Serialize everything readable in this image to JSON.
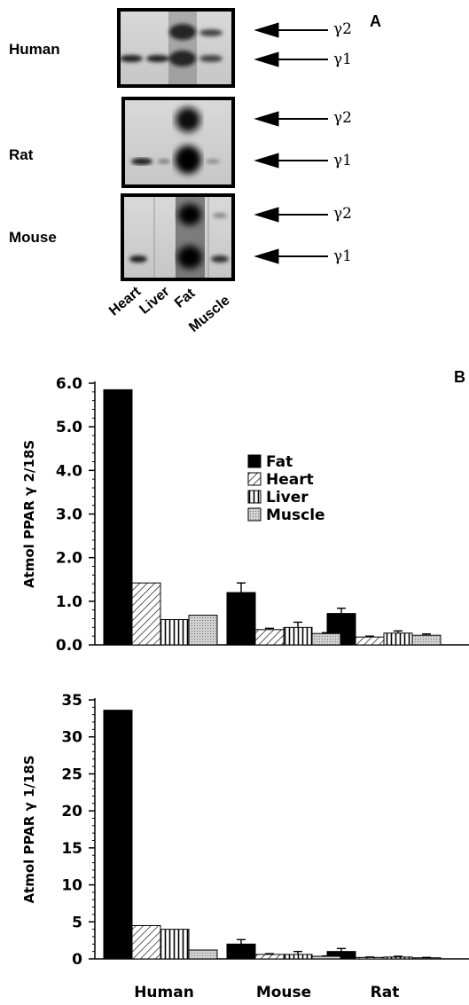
{
  "panel_a": {
    "letter": "A",
    "species": [
      "Human",
      "Rat",
      "Mouse"
    ],
    "lanes": [
      "Heart",
      "Liver",
      "Fat",
      "Muscle"
    ],
    "isoforms": [
      "γ2",
      "γ1"
    ]
  },
  "panel_b": {
    "letter": "B"
  },
  "colors": {
    "fat": "#000000",
    "heart": "hatch-diagonal",
    "liver": "hatch-vertical",
    "muscle": "dotted-gray"
  },
  "chart_data": [
    {
      "type": "bar",
      "categories": [
        "Human",
        "Mouse",
        "Rat"
      ],
      "ylabel": "Atmol PPAR γ 2/18S",
      "ylim": [
        0,
        6.0
      ],
      "yticks": [
        "0.0",
        "1.0",
        "2.0",
        "3.0",
        "4.0",
        "5.0",
        "6.0"
      ],
      "legend": [
        "Fat",
        "Heart",
        "Liver",
        "Muscle"
      ],
      "legend_position": "upper-middle",
      "series": [
        {
          "name": "Fat",
          "values": [
            5.85,
            1.2,
            0.72
          ],
          "errors": [
            0,
            0.22,
            0.12
          ]
        },
        {
          "name": "Heart",
          "values": [
            1.42,
            0.35,
            0.18
          ],
          "errors": [
            0,
            0.03,
            0.02
          ]
        },
        {
          "name": "Liver",
          "values": [
            0.58,
            0.4,
            0.27
          ],
          "errors": [
            0,
            0.12,
            0.05
          ]
        },
        {
          "name": "Muscle",
          "values": [
            0.68,
            0.26,
            0.22
          ],
          "errors": [
            0,
            0.02,
            0.03
          ]
        }
      ]
    },
    {
      "type": "bar",
      "categories": [
        "Human",
        "Mouse",
        "Rat"
      ],
      "ylabel": "Atmol PPAR γ 1/18S",
      "ylim": [
        0,
        35
      ],
      "yticks": [
        "0",
        "5",
        "10",
        "15",
        "20",
        "25",
        "30",
        "35"
      ],
      "series": [
        {
          "name": "Fat",
          "values": [
            33.6,
            2.0,
            1.0
          ],
          "errors": [
            0,
            0.6,
            0.4
          ]
        },
        {
          "name": "Heart",
          "values": [
            4.5,
            0.6,
            0.2
          ],
          "errors": [
            0,
            0.1,
            0.05
          ]
        },
        {
          "name": "Liver",
          "values": [
            4.0,
            0.6,
            0.25
          ],
          "errors": [
            0,
            0.4,
            0.1
          ]
        },
        {
          "name": "Muscle",
          "values": [
            1.2,
            0.35,
            0.15
          ],
          "errors": [
            0,
            0.05,
            0.05
          ]
        }
      ]
    }
  ]
}
